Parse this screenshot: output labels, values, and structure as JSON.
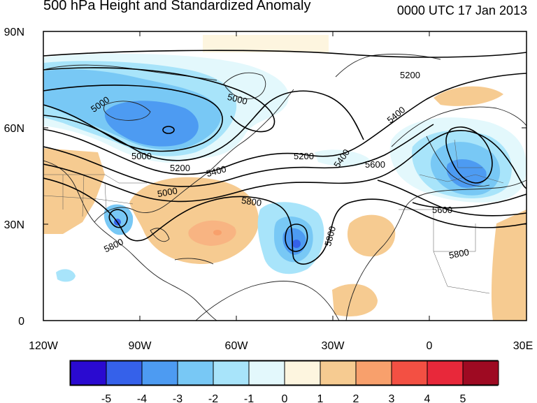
{
  "title": "500 hPa Height and Standardized Anomaly",
  "valid_time": "0000 UTC 17 Jan 2013",
  "axes": {
    "lon_ticks": [
      "120W",
      "90W",
      "60W",
      "30W",
      "0",
      "30E"
    ],
    "lat_ticks": [
      "90N",
      "60N",
      "30N",
      "0"
    ]
  },
  "colorbar": {
    "labels": [
      "-5",
      "-4",
      "-3",
      "-2",
      "-1",
      "0",
      "1",
      "2",
      "3",
      "4",
      "5"
    ],
    "colors": [
      "#2a0ad0",
      "#3561ea",
      "#4d9bf2",
      "#78c8f5",
      "#a8e4fa",
      "#e3f8fc",
      "#fdf5df",
      "#f6cb91",
      "#f8a06c",
      "#f35043",
      "#e8283a",
      "#9e0a22"
    ]
  },
  "contour_labels": {
    "c5000_a": "5000",
    "c5000_b": "5000",
    "c5000_c": "5000",
    "c5000_d": "5000",
    "c5200_a": "5200",
    "c5200_b": "5200",
    "c5200_c": "5200",
    "c5400_a": "5400",
    "c5400_b": "5400",
    "c5400_c": "5400",
    "c5600_a": "5600",
    "c5600_b": "5600",
    "c5800_a": "5800",
    "c5800_b": "5800",
    "c5800_c": "5800",
    "c5800_d": "5800"
  }
}
